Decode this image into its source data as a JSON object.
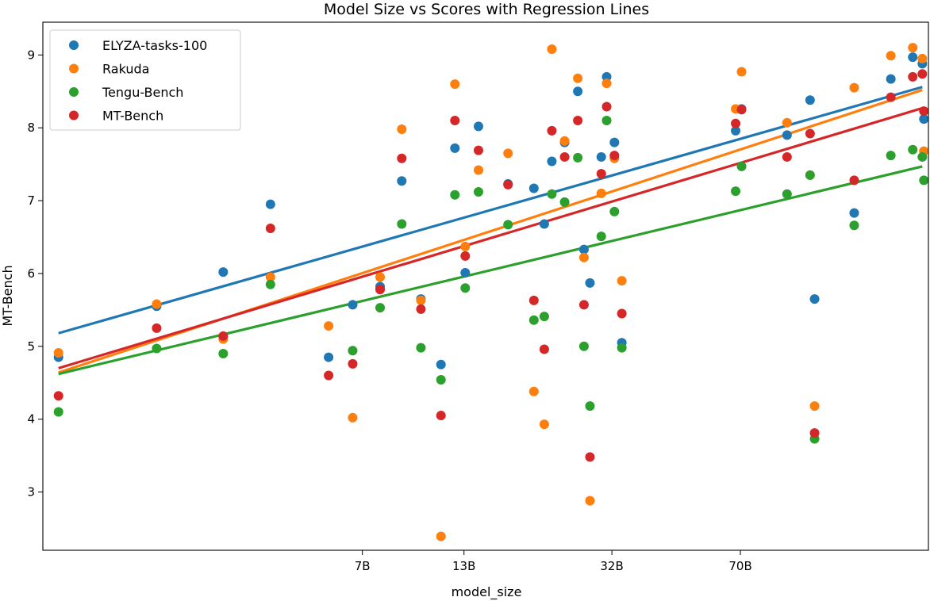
{
  "chart_data": {
    "type": "scatter",
    "title": "Model Size vs Scores with Regression Lines",
    "xlabel": "model_size",
    "ylabel": "MT-Bench",
    "xscale": "log",
    "xlim": [
      1,
      220
    ],
    "ylim": [
      2.2,
      9.45
    ],
    "x_ticks": [
      {
        "label": "7B",
        "value": 7
      },
      {
        "label": "13B",
        "value": 13
      },
      {
        "label": "32B",
        "value": 32
      },
      {
        "label": "70B",
        "value": 70
      }
    ],
    "y_ticks": [
      3,
      4,
      5,
      6,
      7,
      8,
      9
    ],
    "legend_position": "top-left",
    "grid": false,
    "series": [
      {
        "name": "ELYZA-tasks-100",
        "color": "#1f77b4",
        "points": [
          [
            1.1,
            4.85
          ],
          [
            2.0,
            5.55
          ],
          [
            3.0,
            6.02
          ],
          [
            4.0,
            6.95
          ],
          [
            5.7,
            4.85
          ],
          [
            6.6,
            5.57
          ],
          [
            7.8,
            5.82
          ],
          [
            8.9,
            7.27
          ],
          [
            10.0,
            5.65
          ],
          [
            11.3,
            4.75
          ],
          [
            12.3,
            7.72
          ],
          [
            13.1,
            6.01
          ],
          [
            14.2,
            8.02
          ],
          [
            17.0,
            7.23
          ],
          [
            19.9,
            7.17
          ],
          [
            21.2,
            6.68
          ],
          [
            22.2,
            7.54
          ],
          [
            24.0,
            7.8
          ],
          [
            26.0,
            8.5
          ],
          [
            27.0,
            6.33
          ],
          [
            28.0,
            5.87
          ],
          [
            30.0,
            7.6
          ],
          [
            31.0,
            8.7
          ],
          [
            32.5,
            7.8
          ],
          [
            34.0,
            5.05
          ],
          [
            68.0,
            7.96
          ],
          [
            70.5,
            8.26
          ],
          [
            93.0,
            7.9
          ],
          [
            107.0,
            8.38
          ],
          [
            110.0,
            5.65
          ],
          [
            140.0,
            6.83
          ],
          [
            175.0,
            8.67
          ],
          [
            200.0,
            8.97
          ],
          [
            212.0,
            8.88
          ],
          [
            214.0,
            8.12
          ]
        ],
        "fit": [
          [
            1.1,
            5.18
          ],
          [
            212.0,
            8.56
          ]
        ]
      },
      {
        "name": "Rakuda",
        "color": "#ff7f0e",
        "points": [
          [
            1.1,
            4.91
          ],
          [
            2.0,
            5.58
          ],
          [
            3.0,
            5.1
          ],
          [
            4.0,
            5.95
          ],
          [
            5.7,
            5.28
          ],
          [
            6.6,
            4.02
          ],
          [
            7.8,
            5.95
          ],
          [
            8.9,
            7.98
          ],
          [
            10.0,
            5.63
          ],
          [
            11.3,
            2.39
          ],
          [
            12.3,
            8.6
          ],
          [
            13.1,
            6.37
          ],
          [
            14.2,
            7.42
          ],
          [
            17.0,
            7.65
          ],
          [
            19.9,
            4.38
          ],
          [
            21.2,
            3.93
          ],
          [
            22.2,
            9.08
          ],
          [
            24.0,
            7.82
          ],
          [
            26.0,
            8.68
          ],
          [
            27.0,
            6.22
          ],
          [
            28.0,
            2.88
          ],
          [
            30.0,
            7.1
          ],
          [
            31.0,
            8.61
          ],
          [
            32.5,
            7.58
          ],
          [
            34.0,
            5.9
          ],
          [
            68.0,
            8.26
          ],
          [
            70.5,
            8.77
          ],
          [
            93.0,
            8.07
          ],
          [
            107.0,
            7.35
          ],
          [
            110.0,
            4.18
          ],
          [
            140.0,
            8.55
          ],
          [
            175.0,
            8.99
          ],
          [
            200.0,
            9.1
          ],
          [
            212.0,
            8.95
          ],
          [
            214.0,
            7.68
          ]
        ],
        "fit": [
          [
            1.1,
            4.64
          ],
          [
            212.0,
            8.52
          ]
        ]
      },
      {
        "name": "Tengu-Bench",
        "color": "#2ca02c",
        "points": [
          [
            1.1,
            4.1
          ],
          [
            2.0,
            4.97
          ],
          [
            3.0,
            4.9
          ],
          [
            4.0,
            5.85
          ],
          [
            6.6,
            4.94
          ],
          [
            7.8,
            5.53
          ],
          [
            8.9,
            6.68
          ],
          [
            10.0,
            4.98
          ],
          [
            11.3,
            4.54
          ],
          [
            12.3,
            7.08
          ],
          [
            13.1,
            5.8
          ],
          [
            14.2,
            7.12
          ],
          [
            17.0,
            6.67
          ],
          [
            19.9,
            5.36
          ],
          [
            21.2,
            5.41
          ],
          [
            22.2,
            7.09
          ],
          [
            24.0,
            6.98
          ],
          [
            26.0,
            7.59
          ],
          [
            27.0,
            5.0
          ],
          [
            28.0,
            4.18
          ],
          [
            30.0,
            6.51
          ],
          [
            31.0,
            8.1
          ],
          [
            32.5,
            6.85
          ],
          [
            34.0,
            4.98
          ],
          [
            68.0,
            7.13
          ],
          [
            70.5,
            7.47
          ],
          [
            93.0,
            7.09
          ],
          [
            107.0,
            7.35
          ],
          [
            110.0,
            3.73
          ],
          [
            140.0,
            6.66
          ],
          [
            175.0,
            7.62
          ],
          [
            200.0,
            7.7
          ],
          [
            212.0,
            7.6
          ],
          [
            214.0,
            7.28
          ]
        ],
        "fit": [
          [
            1.1,
            4.62
          ],
          [
            212.0,
            7.47
          ]
        ]
      },
      {
        "name": "MT-Bench",
        "color": "#d62728",
        "points": [
          [
            1.1,
            4.32
          ],
          [
            2.0,
            5.25
          ],
          [
            3.0,
            5.14
          ],
          [
            4.0,
            6.62
          ],
          [
            5.7,
            4.6
          ],
          [
            6.6,
            4.76
          ],
          [
            7.8,
            5.78
          ],
          [
            8.9,
            7.58
          ],
          [
            10.0,
            5.51
          ],
          [
            11.3,
            4.05
          ],
          [
            12.3,
            8.1
          ],
          [
            13.1,
            6.24
          ],
          [
            14.2,
            7.69
          ],
          [
            17.0,
            7.22
          ],
          [
            19.9,
            5.63
          ],
          [
            21.2,
            4.96
          ],
          [
            22.2,
            7.96
          ],
          [
            24.0,
            7.6
          ],
          [
            26.0,
            8.1
          ],
          [
            27.0,
            5.57
          ],
          [
            28.0,
            3.48
          ],
          [
            30.0,
            7.37
          ],
          [
            31.0,
            8.29
          ],
          [
            32.5,
            7.62
          ],
          [
            34.0,
            5.45
          ],
          [
            68.0,
            8.06
          ],
          [
            70.5,
            8.25
          ],
          [
            93.0,
            7.6
          ],
          [
            107.0,
            7.92
          ],
          [
            110.0,
            3.81
          ],
          [
            140.0,
            7.28
          ],
          [
            175.0,
            8.42
          ],
          [
            200.0,
            8.7
          ],
          [
            212.0,
            8.74
          ],
          [
            214.0,
            8.23
          ]
        ],
        "fit": [
          [
            1.1,
            4.7
          ],
          [
            212.0,
            8.27
          ]
        ]
      }
    ]
  }
}
